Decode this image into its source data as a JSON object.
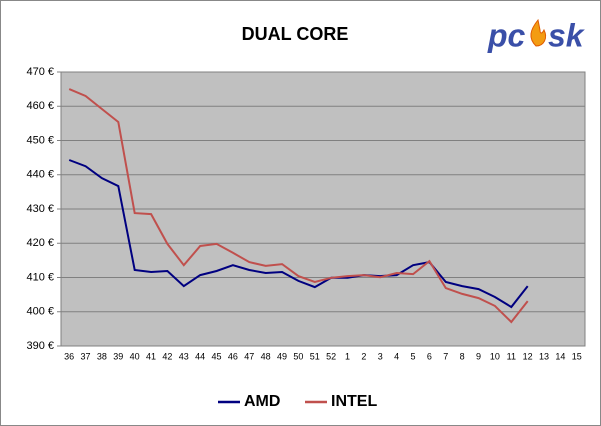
{
  "logo": {
    "left": "pc",
    "right": "sk"
  },
  "chart_data": {
    "type": "line",
    "title": "DUAL CORE",
    "categories": [
      "36",
      "37",
      "38",
      "39",
      "40",
      "41",
      "42",
      "43",
      "44",
      "45",
      "46",
      "47",
      "48",
      "49",
      "50",
      "51",
      "52",
      "1",
      "2",
      "3",
      "4",
      "5",
      "6",
      "7",
      "8",
      "9",
      "10",
      "11",
      "12",
      "13",
      "14",
      "15"
    ],
    "series": [
      {
        "name": "AMD",
        "color": "#000080",
        "values": [
          444.3,
          442.5,
          439,
          436.7,
          412.2,
          411.6,
          411.9,
          407.5,
          410.7,
          411.9,
          413.6,
          412.2,
          411.3,
          411.6,
          409,
          407.2,
          409.9,
          409.9,
          410.7,
          410.4,
          410.7,
          413.6,
          414.5,
          408.7,
          407.5,
          406.6,
          404.3,
          401.4,
          407.5,
          null,
          null,
          null
        ]
      },
      {
        "name": "INTEL",
        "color": "#c0504d",
        "values": [
          465,
          463,
          459.2,
          455.4,
          428.8,
          428.5,
          419.8,
          413.6,
          419.2,
          419.8,
          417.2,
          414.5,
          413.4,
          413.9,
          410.4,
          408.7,
          409.9,
          410.4,
          410.7,
          410.1,
          411.3,
          411,
          414.8,
          406.9,
          405.2,
          404,
          401.7,
          397,
          403.1,
          null,
          null,
          null
        ]
      }
    ],
    "ylim": [
      390,
      470
    ],
    "yticks": [
      {
        "value": 390,
        "label": "390 €"
      },
      {
        "value": 400,
        "label": "400 €"
      },
      {
        "value": 410,
        "label": "410 €"
      },
      {
        "value": 420,
        "label": "420 €"
      },
      {
        "value": 430,
        "label": "430 €"
      },
      {
        "value": 440,
        "label": "440 €"
      },
      {
        "value": 450,
        "label": "450 €"
      },
      {
        "value": 460,
        "label": "460 €"
      },
      {
        "value": 470,
        "label": "470 €"
      }
    ],
    "grid": true,
    "legend": "bottom"
  }
}
